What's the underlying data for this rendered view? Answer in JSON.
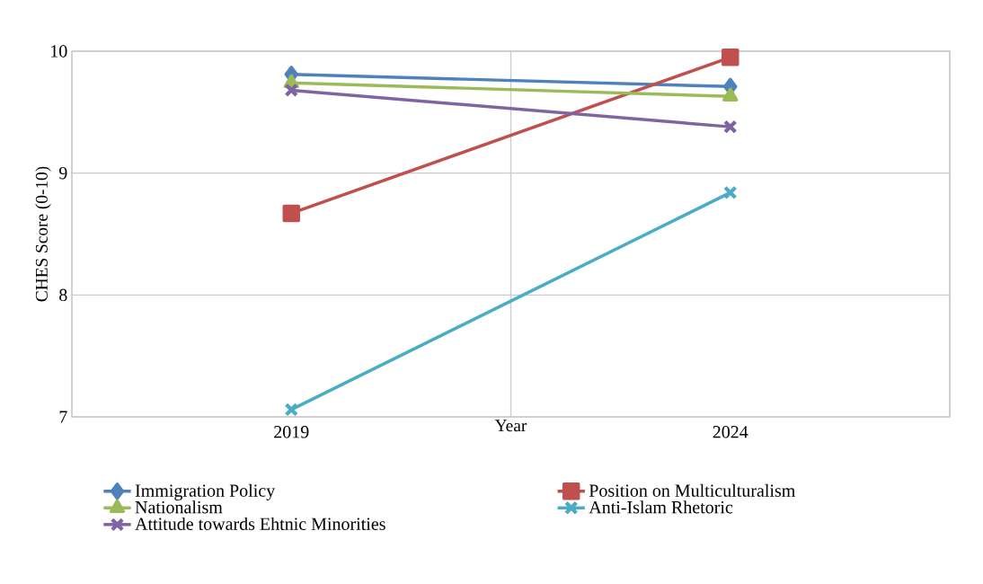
{
  "chart_data": {
    "type": "line",
    "xlabel": "Year",
    "ylabel": "CHES Score (0-10)",
    "categories": [
      "2019",
      "2024"
    ],
    "ylim": [
      7,
      10
    ],
    "yticks": [
      7,
      8,
      9,
      10
    ],
    "grid": true,
    "legend": "bottom",
    "series": [
      {
        "name": "Immigration Policy",
        "color": "#4f81bd",
        "marker": "diamond",
        "values": [
          9.81,
          9.71
        ]
      },
      {
        "name": "Position on Multiculturalism",
        "color": "#c0504d",
        "marker": "square",
        "values": [
          8.67,
          9.95
        ]
      },
      {
        "name": "Nationalism",
        "color": "#9bbb59",
        "marker": "triangle",
        "values": [
          9.74,
          9.63
        ]
      },
      {
        "name": "Anti-Islam Rhetoric",
        "color": "#4bacc6",
        "marker": "cross",
        "values": [
          7.06,
          8.84
        ]
      },
      {
        "name": "Attitude towards Ehtnic Minorities",
        "color": "#8064a2",
        "marker": "cross",
        "values": [
          9.68,
          9.38
        ]
      }
    ]
  }
}
